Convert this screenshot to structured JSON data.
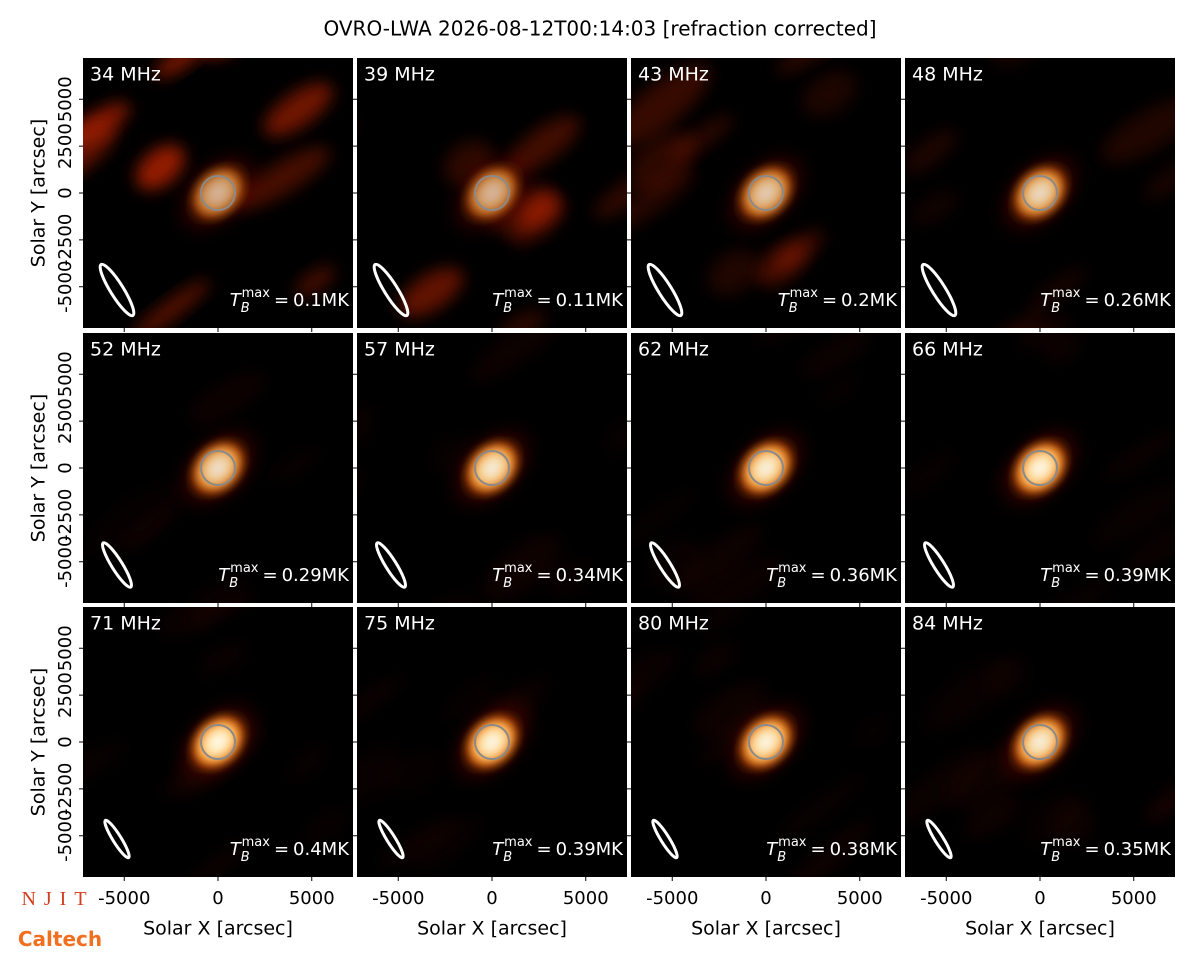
{
  "chart_data": {
    "type": "image-grid",
    "title": "OVRO-LWA 2026-08-12T00:14:03 [refraction corrected]",
    "xlabel": "Solar X [arcsec]",
    "ylabel": "Solar Y [arcsec]",
    "xlim": [
      -7200,
      7200
    ],
    "ylim": [
      -7200,
      7200
    ],
    "xticks": [
      -5000,
      0,
      5000
    ],
    "yticks": [
      -5000,
      -2500,
      0,
      2500,
      5000
    ],
    "categories": [
      "34 MHz",
      "39 MHz",
      "43 MHz",
      "48 MHz",
      "52 MHz",
      "57 MHz",
      "62 MHz",
      "66 MHz",
      "71 MHz",
      "75 MHz",
      "80 MHz",
      "84 MHz"
    ],
    "values": [
      0.1,
      0.11,
      0.2,
      0.26,
      0.29,
      0.34,
      0.36,
      0.39,
      0.4,
      0.39,
      0.38,
      0.35
    ],
    "value_labels": [
      "0.1MK",
      "0.11MK",
      "0.2MK",
      "0.26MK",
      "0.29MK",
      "0.34MK",
      "0.36MK",
      "0.39MK",
      "0.4MK",
      "0.39MK",
      "0.38MK",
      "0.35MK"
    ],
    "value_label_symbol": {
      "base": "T",
      "sub": "B",
      "sup": "max",
      "sign": "="
    },
    "logos": [
      "NJIT",
      "Caltech"
    ]
  }
}
